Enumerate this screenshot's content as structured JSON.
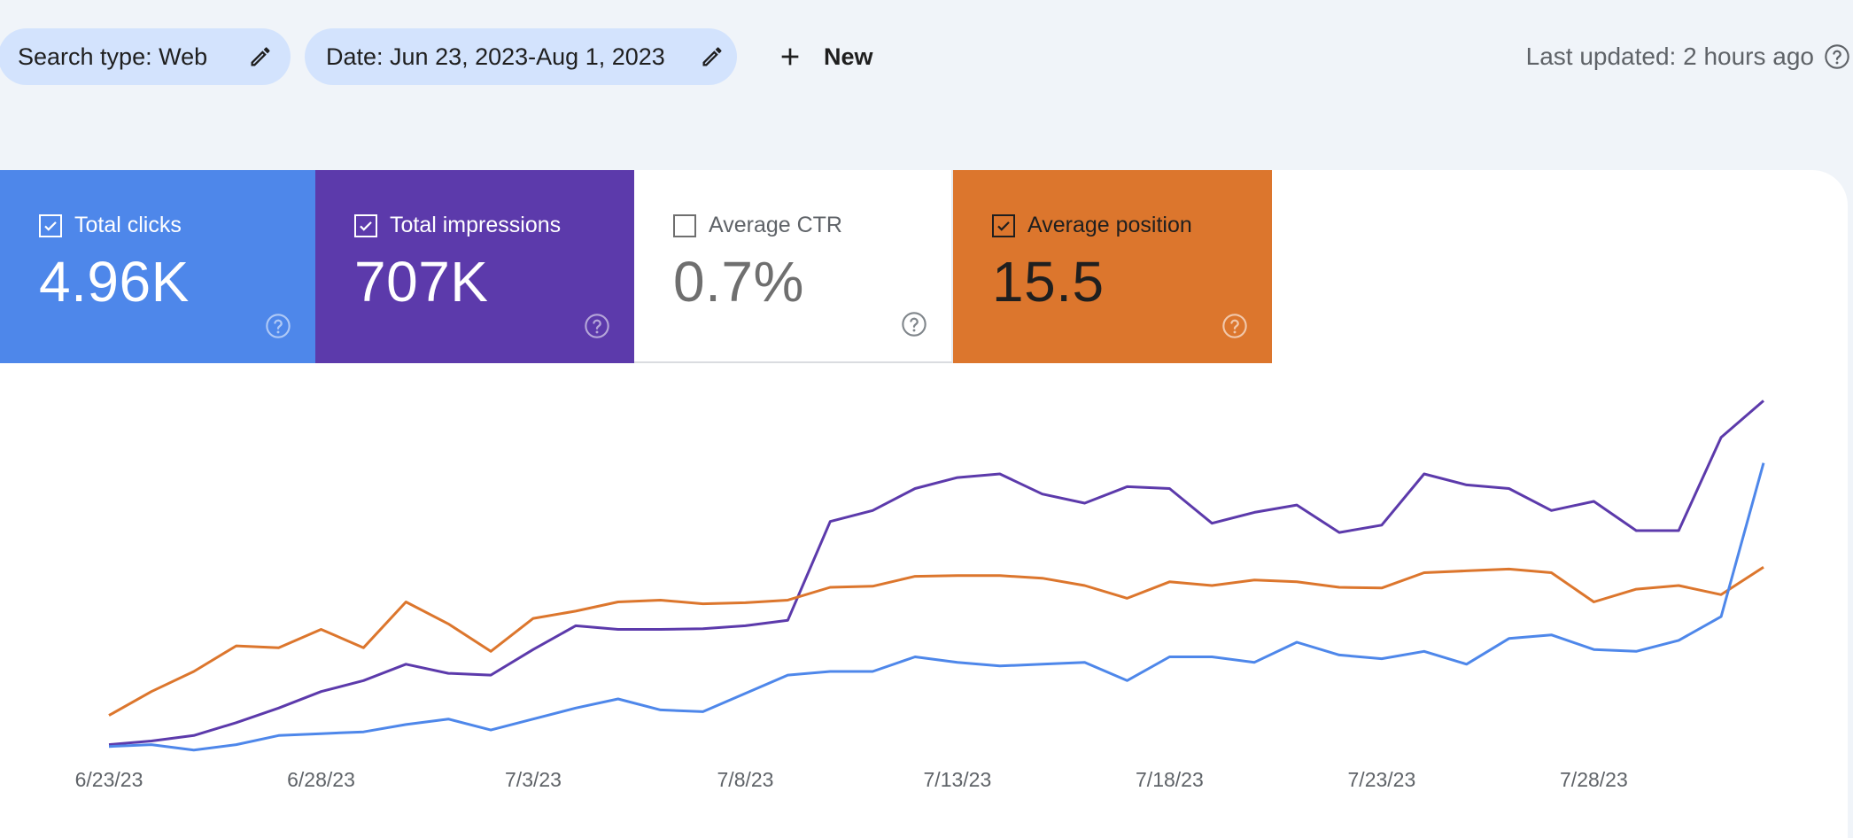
{
  "toolbar": {
    "search_type_chip": "Search type: Web",
    "date_chip": "Date: Jun 23, 2023-Aug 1, 2023",
    "new_button": "New",
    "last_updated": "Last updated: 2 hours ago"
  },
  "metrics": {
    "clicks": {
      "label": "Total clicks",
      "value": "4.96K",
      "checked": true,
      "color": "#4e87ea"
    },
    "impressions": {
      "label": "Total impressions",
      "value": "707K",
      "checked": true,
      "color": "#5c3aab"
    },
    "ctr": {
      "label": "Average CTR",
      "value": "0.7%",
      "checked": false,
      "color": "#ffffff"
    },
    "position": {
      "label": "Average position",
      "value": "15.5",
      "checked": true,
      "color": "#dc762d"
    }
  },
  "chart_data": {
    "type": "line",
    "x_tick_labels": [
      "6/23/23",
      "6/28/23",
      "7/3/23",
      "7/8/23",
      "7/13/23",
      "7/18/23",
      "7/23/23",
      "7/28/23"
    ],
    "x_tick_index": [
      0,
      5,
      10,
      15,
      20,
      25,
      30,
      35
    ],
    "y_axis_shown": false,
    "ylim": [
      0,
      1
    ],
    "grid": false,
    "series": [
      {
        "color": "#5c3aab",
        "values": [
          0.03,
          0.04,
          0.055,
          0.09,
          0.13,
          0.175,
          0.205,
          0.25,
          0.225,
          0.22,
          0.29,
          0.355,
          0.345,
          0.345,
          0.347,
          0.355,
          0.37,
          0.64,
          0.67,
          0.73,
          0.76,
          0.77,
          0.715,
          0.69,
          0.735,
          0.73,
          0.635,
          0.665,
          0.685,
          0.61,
          0.63,
          0.77,
          0.74,
          0.73,
          0.67,
          0.695,
          0.615,
          0.615,
          0.87,
          0.97
        ]
      },
      {
        "color": "#dc762d",
        "values": [
          0.11,
          0.175,
          0.23,
          0.3,
          0.295,
          0.345,
          0.295,
          0.42,
          0.36,
          0.285,
          0.375,
          0.395,
          0.42,
          0.425,
          0.415,
          0.418,
          0.425,
          0.46,
          0.463,
          0.49,
          0.492,
          0.492,
          0.485,
          0.465,
          0.43,
          0.475,
          0.465,
          0.48,
          0.475,
          0.46,
          0.458,
          0.5,
          0.505,
          0.51,
          0.5,
          0.42,
          0.455,
          0.465,
          0.44,
          0.515
        ]
      },
      {
        "color": "#4e87ea",
        "values": [
          0.025,
          0.03,
          0.015,
          0.03,
          0.055,
          0.06,
          0.065,
          0.085,
          0.1,
          0.07,
          0.1,
          0.13,
          0.155,
          0.125,
          0.12,
          0.17,
          0.22,
          0.23,
          0.23,
          0.27,
          0.255,
          0.245,
          0.25,
          0.255,
          0.205,
          0.27,
          0.27,
          0.255,
          0.31,
          0.275,
          0.265,
          0.285,
          0.25,
          0.32,
          0.33,
          0.29,
          0.285,
          0.315,
          0.38,
          0.8
        ]
      }
    ]
  }
}
